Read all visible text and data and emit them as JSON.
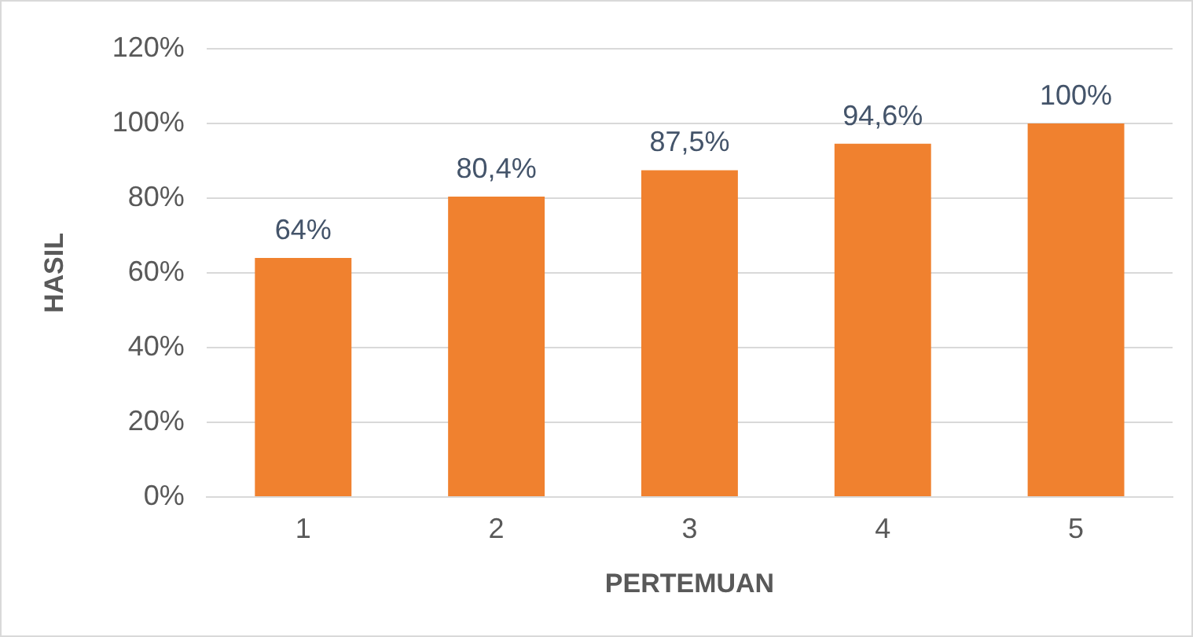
{
  "chart_data": {
    "type": "bar",
    "xlabel": "PERTEMUAN",
    "ylabel": "HASIL",
    "categories": [
      "1",
      "2",
      "3",
      "4",
      "5"
    ],
    "values": [
      64,
      80.4,
      87.5,
      94.6,
      100
    ],
    "value_labels": [
      "64%",
      "80,4%",
      "87,5%",
      "94,6%",
      "100%"
    ],
    "color": "#f0812f",
    "ylim": [
      0,
      120
    ],
    "yticks": [
      {
        "value": 0,
        "label": "0%"
      },
      {
        "value": 20,
        "label": "20%"
      },
      {
        "value": 40,
        "label": "40%"
      },
      {
        "value": 60,
        "label": "60%"
      },
      {
        "value": 80,
        "label": "80%"
      },
      {
        "value": 100,
        "label": "100%"
      },
      {
        "value": 120,
        "label": "120%"
      }
    ],
    "grid": "y",
    "legend": false
  }
}
